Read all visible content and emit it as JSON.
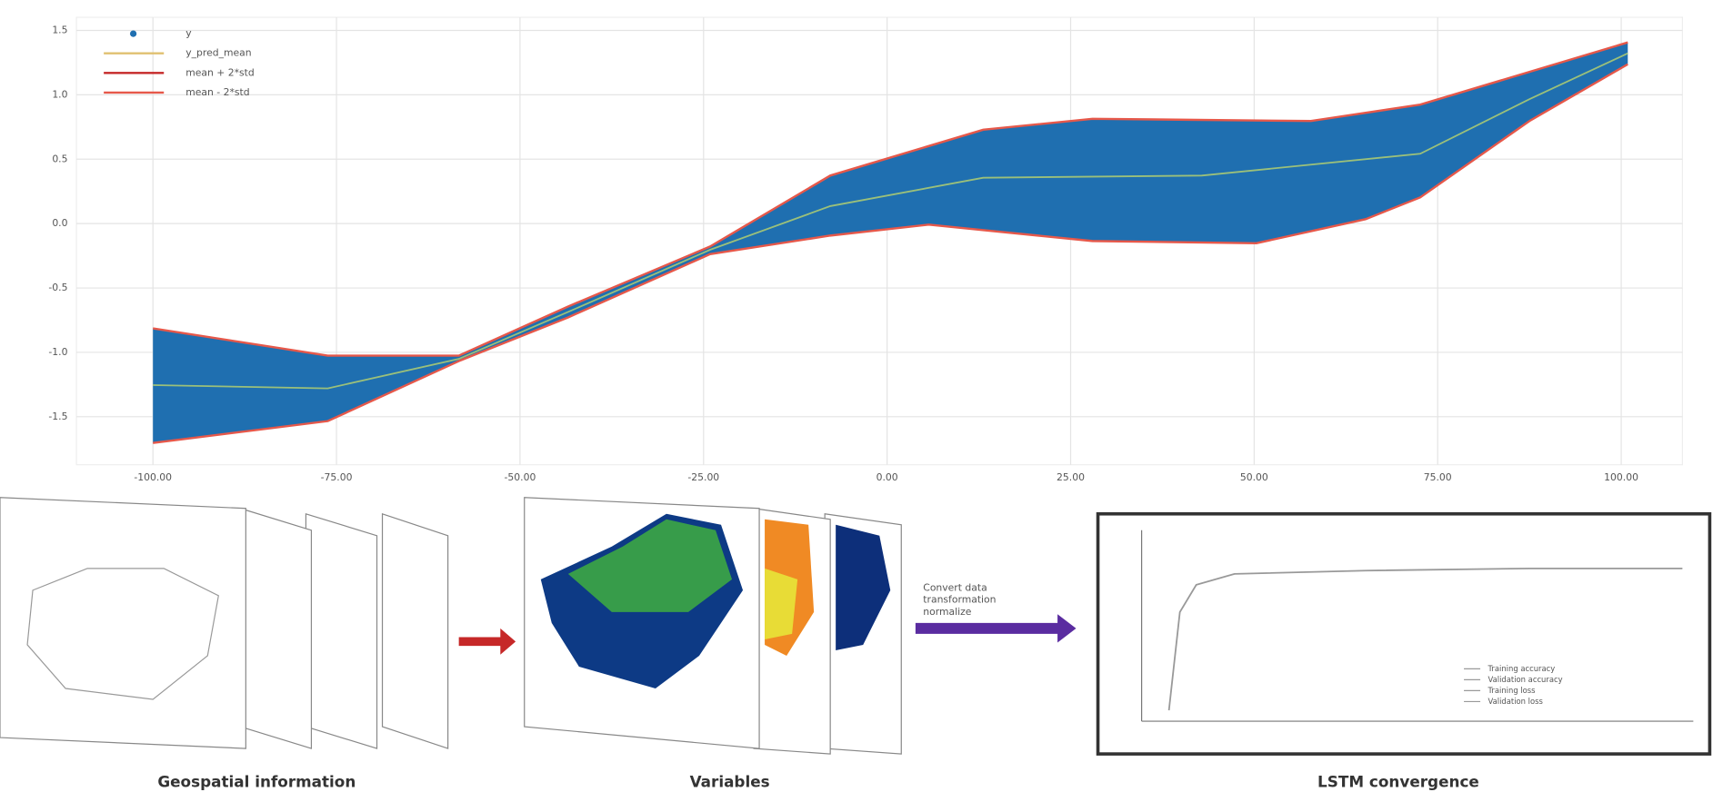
{
  "top_plot": {
    "legend": [
      "y",
      "y_pred_mean",
      "mean + 2*std",
      "mean - 2*std"
    ],
    "yticks": [
      "1.5",
      "1.0",
      "0.5",
      "0.0",
      "-0.5",
      "-1.0",
      "-1.5"
    ],
    "xticks": [
      "-100.00",
      "-75.00",
      "-50.00",
      "-25.00",
      "0.00",
      "25.00",
      "50.00",
      "75.00",
      "100.00"
    ]
  },
  "panels": {
    "geospatial": {
      "caption": "Geospatial information"
    },
    "variables": {
      "caption": "Variables"
    },
    "arrow_text": [
      "Convert data",
      "transformation",
      "normalize"
    ],
    "lstm": {
      "caption": "LSTM convergence",
      "legend": [
        "Training accuracy",
        "Validation accuracy",
        "Training loss",
        "Validation loss"
      ]
    }
  }
}
